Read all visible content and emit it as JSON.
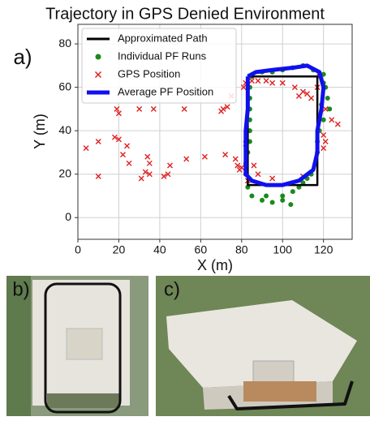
{
  "chart_data": {
    "type": "scatter",
    "title": "Trajectory in GPS Denied Environment",
    "xlabel": "X (m)",
    "ylabel": "Y (m)",
    "xlim": [
      0,
      134
    ],
    "ylim": [
      -10,
      89
    ],
    "xticks": [
      0,
      20,
      40,
      60,
      80,
      100,
      120
    ],
    "yticks": [
      0,
      20,
      40,
      60,
      80
    ],
    "grid": true,
    "legend": "upper left",
    "series": [
      {
        "name": "Approximated Path",
        "color": "#000000",
        "style": "line",
        "x": [
          83,
          117,
          117,
          83,
          83
        ],
        "values": [
          65,
          65,
          15,
          15,
          65
        ]
      },
      {
        "name": "Individual PF Runs",
        "color": "#1a8a1a",
        "style": "dot",
        "x": [
          85,
          90,
          95,
          100,
          105,
          110,
          115,
          120,
          121,
          122,
          123,
          120,
          118,
          117,
          117,
          116,
          114,
          110,
          105,
          100,
          95,
          90,
          85,
          83,
          82,
          82,
          83,
          84,
          84,
          84,
          84,
          84,
          84,
          100,
          108,
          112,
          120,
          119,
          104,
          92
        ],
        "values": [
          65,
          67,
          67,
          68,
          69,
          70,
          68,
          66,
          60,
          55,
          50,
          45,
          40,
          35,
          30,
          25,
          20,
          16,
          12,
          8,
          7,
          8,
          10,
          14,
          20,
          25,
          30,
          35,
          40,
          45,
          50,
          55,
          60,
          10,
          14,
          18,
          62,
          52,
          6,
          10
        ]
      },
      {
        "name": "GPS Position",
        "color": "#e02020",
        "style": "x",
        "x": [
          4,
          10,
          10,
          18,
          19,
          20,
          20,
          22,
          24,
          25,
          30,
          31,
          33,
          34,
          35,
          35,
          37,
          42,
          44,
          45,
          52,
          53,
          62,
          70,
          71,
          72,
          73,
          75,
          77,
          78,
          80,
          79,
          81,
          82,
          85,
          88,
          92,
          95,
          100,
          106,
          108,
          110,
          112,
          114,
          117,
          118,
          121,
          124,
          127,
          120,
          121,
          120,
          82,
          86,
          88,
          95,
          110,
          83
        ],
        "values": [
          32,
          35,
          19,
          37,
          50,
          48,
          36,
          29,
          33,
          25,
          50,
          18,
          21,
          28,
          20,
          25,
          50,
          19,
          20,
          24,
          50,
          27,
          28,
          49,
          50,
          29,
          51,
          56,
          27,
          24,
          23,
          22,
          60,
          62,
          63,
          63,
          63,
          62,
          62,
          60,
          56,
          58,
          57,
          55,
          60,
          65,
          50,
          45,
          43,
          38,
          35,
          32,
          34,
          24,
          20,
          18,
          19,
          17
        ]
      },
      {
        "name": "Average PF Position",
        "color": "#1010ee",
        "style": "thick-line",
        "x": [
          83,
          87,
          95,
          105,
          112,
          118,
          120,
          119,
          117,
          117,
          115,
          108,
          100,
          92,
          85,
          82,
          82,
          82,
          83,
          83,
          83
        ],
        "values": [
          65,
          67,
          68,
          69,
          70,
          67,
          60,
          50,
          40,
          30,
          22,
          17,
          15,
          15,
          17,
          20,
          30,
          40,
          50,
          60,
          65
        ]
      }
    ]
  },
  "panel_labels": [
    "a)",
    "b)",
    "c)"
  ]
}
